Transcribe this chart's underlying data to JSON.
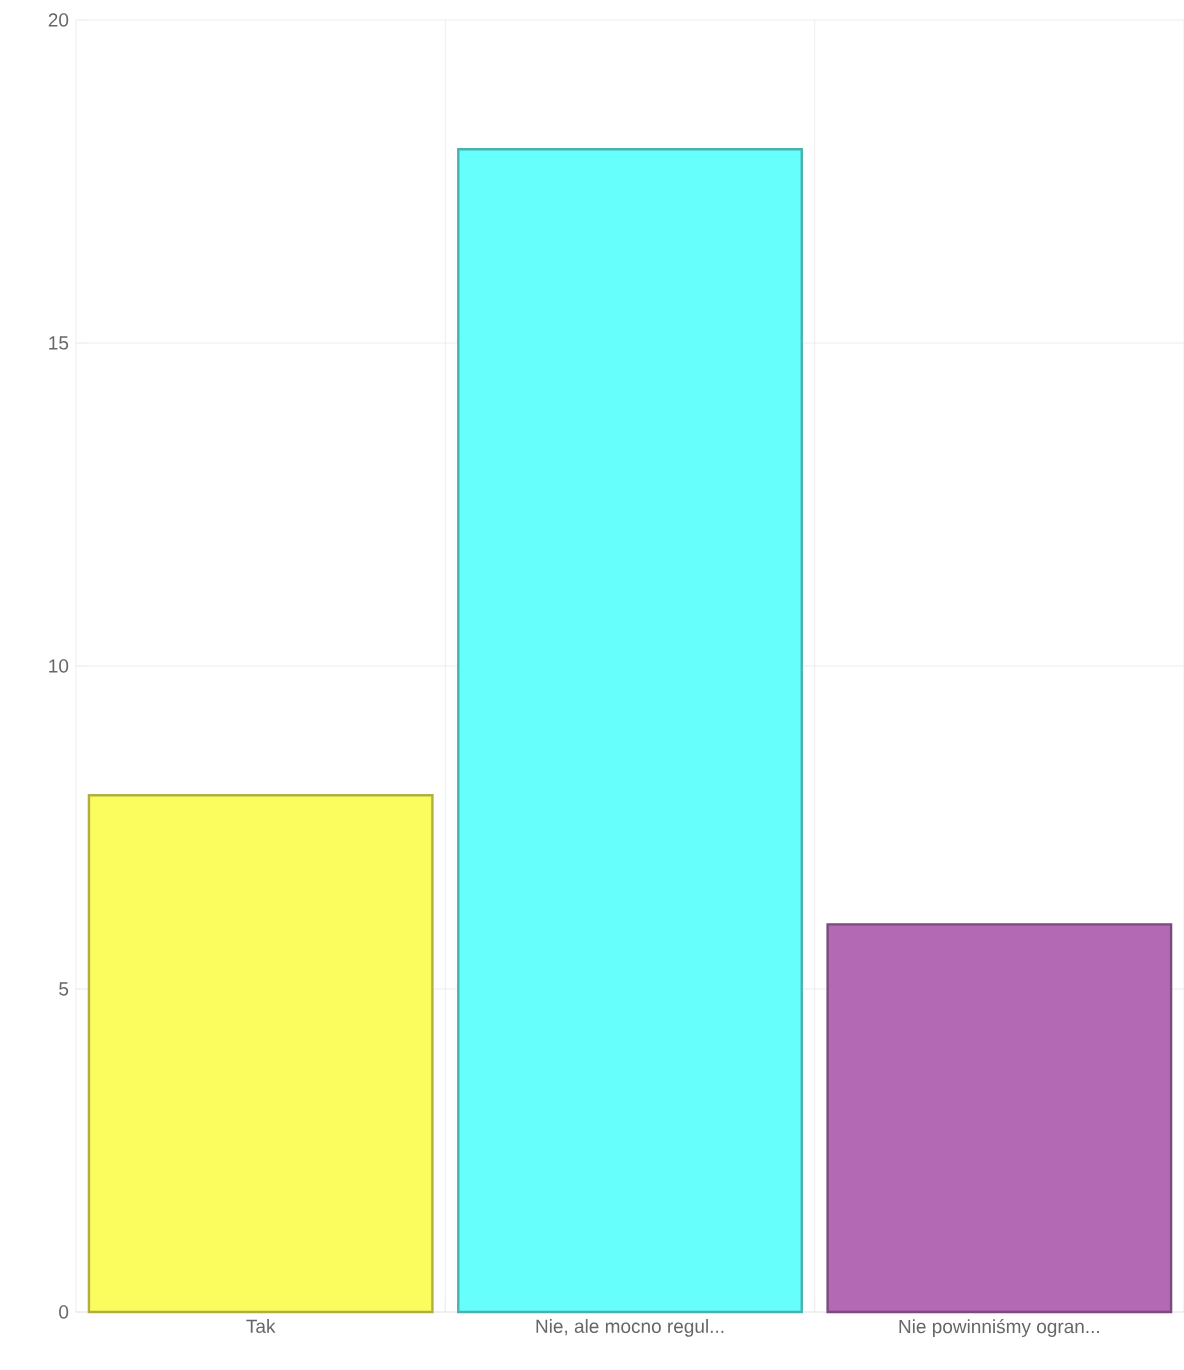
{
  "chart_data": {
    "type": "bar",
    "categories": [
      "Tak",
      "Nie, ale mocno regul...",
      "Nie powinniśmy ogran..."
    ],
    "values": [
      8,
      18,
      6
    ],
    "colors": [
      "#fbfc5e",
      "#66fffc",
      "#b369b3"
    ],
    "ylim": [
      0,
      20
    ],
    "yticks": [
      0,
      5,
      10,
      15,
      20
    ],
    "grid": true
  }
}
